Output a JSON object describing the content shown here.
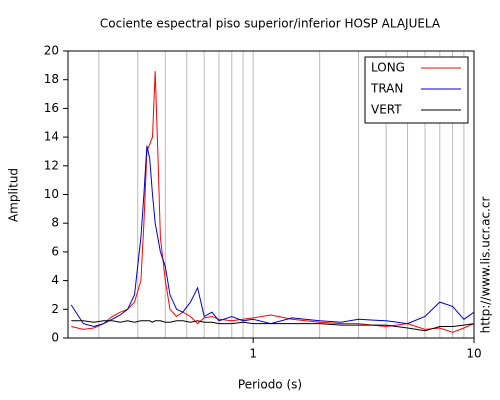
{
  "chart_data": {
    "type": "line",
    "title": "Cociente espectral piso superior/inferior  HOSP ALAJUELA",
    "x_label": "Periodo (s)",
    "y_label": "Amplitud",
    "side_note": "http://www.lis.ucr.ac.cr",
    "x": [
      0.15,
      0.17,
      0.19,
      0.21,
      0.23,
      0.25,
      0.27,
      0.29,
      0.31,
      0.32,
      0.33,
      0.34,
      0.35,
      0.36,
      0.37,
      0.38,
      0.4,
      0.42,
      0.45,
      0.48,
      0.52,
      0.56,
      0.6,
      0.65,
      0.7,
      0.8,
      0.9,
      1.0,
      1.2,
      1.5,
      2,
      2.5,
      3,
      4,
      5,
      6,
      7,
      8,
      9,
      10
    ],
    "series": [
      {
        "name": "LONG",
        "color": "#ff0000",
        "values": [
          0.8,
          0.6,
          0.7,
          1.0,
          1.5,
          1.8,
          2.0,
          2.5,
          4,
          8,
          13,
          13.5,
          14,
          18.6,
          13,
          7,
          4,
          2,
          1.5,
          1.8,
          1.5,
          1.0,
          1.4,
          1.5,
          1.3,
          1.2,
          1.3,
          1.4,
          1.6,
          1.3,
          1.1,
          1.0,
          1.0,
          0.8,
          1.0,
          0.6,
          0.7,
          0.4,
          0.7,
          1.0
        ]
      },
      {
        "name": "TRAN",
        "color": "#0000cc",
        "values": [
          2.3,
          1.0,
          0.8,
          1.0,
          1.3,
          1.6,
          2.0,
          3.0,
          7,
          10,
          13.4,
          12.5,
          10,
          8,
          7,
          6,
          5,
          3,
          2.0,
          1.8,
          2.5,
          3.5,
          1.5,
          1.8,
          1.2,
          1.5,
          1.2,
          1.3,
          1.0,
          1.4,
          1.2,
          1.1,
          1.3,
          1.2,
          1.0,
          1.5,
          2.5,
          2.2,
          1.3,
          1.8
        ]
      },
      {
        "name": "VERT",
        "color": "#000000",
        "values": [
          1.2,
          1.2,
          1.1,
          1.2,
          1.2,
          1.1,
          1.2,
          1.1,
          1.2,
          1.2,
          1.2,
          1.2,
          1.1,
          1.2,
          1.2,
          1.2,
          1.1,
          1.1,
          1.2,
          1.2,
          1.1,
          1.2,
          1.1,
          1.1,
          1.0,
          1.0,
          1.1,
          1.0,
          1.0,
          1.0,
          1.0,
          0.9,
          0.9,
          0.9,
          0.7,
          0.5,
          0.8,
          0.8,
          0.9,
          1.0
        ]
      }
    ],
    "xlog": true,
    "xlim": [
      0.145,
      10
    ],
    "xticks": [
      1,
      10
    ],
    "xminor_ticks": [
      0.2,
      0.3,
      0.4,
      0.5,
      0.6,
      0.7,
      0.8,
      0.9,
      2,
      3,
      4,
      5,
      6,
      7,
      8,
      9
    ],
    "ylim": [
      0,
      20
    ],
    "yticks": [
      0,
      2,
      4,
      6,
      8,
      10,
      12,
      14,
      16,
      18,
      20
    ],
    "xgrid": true,
    "legend": "top-right"
  }
}
